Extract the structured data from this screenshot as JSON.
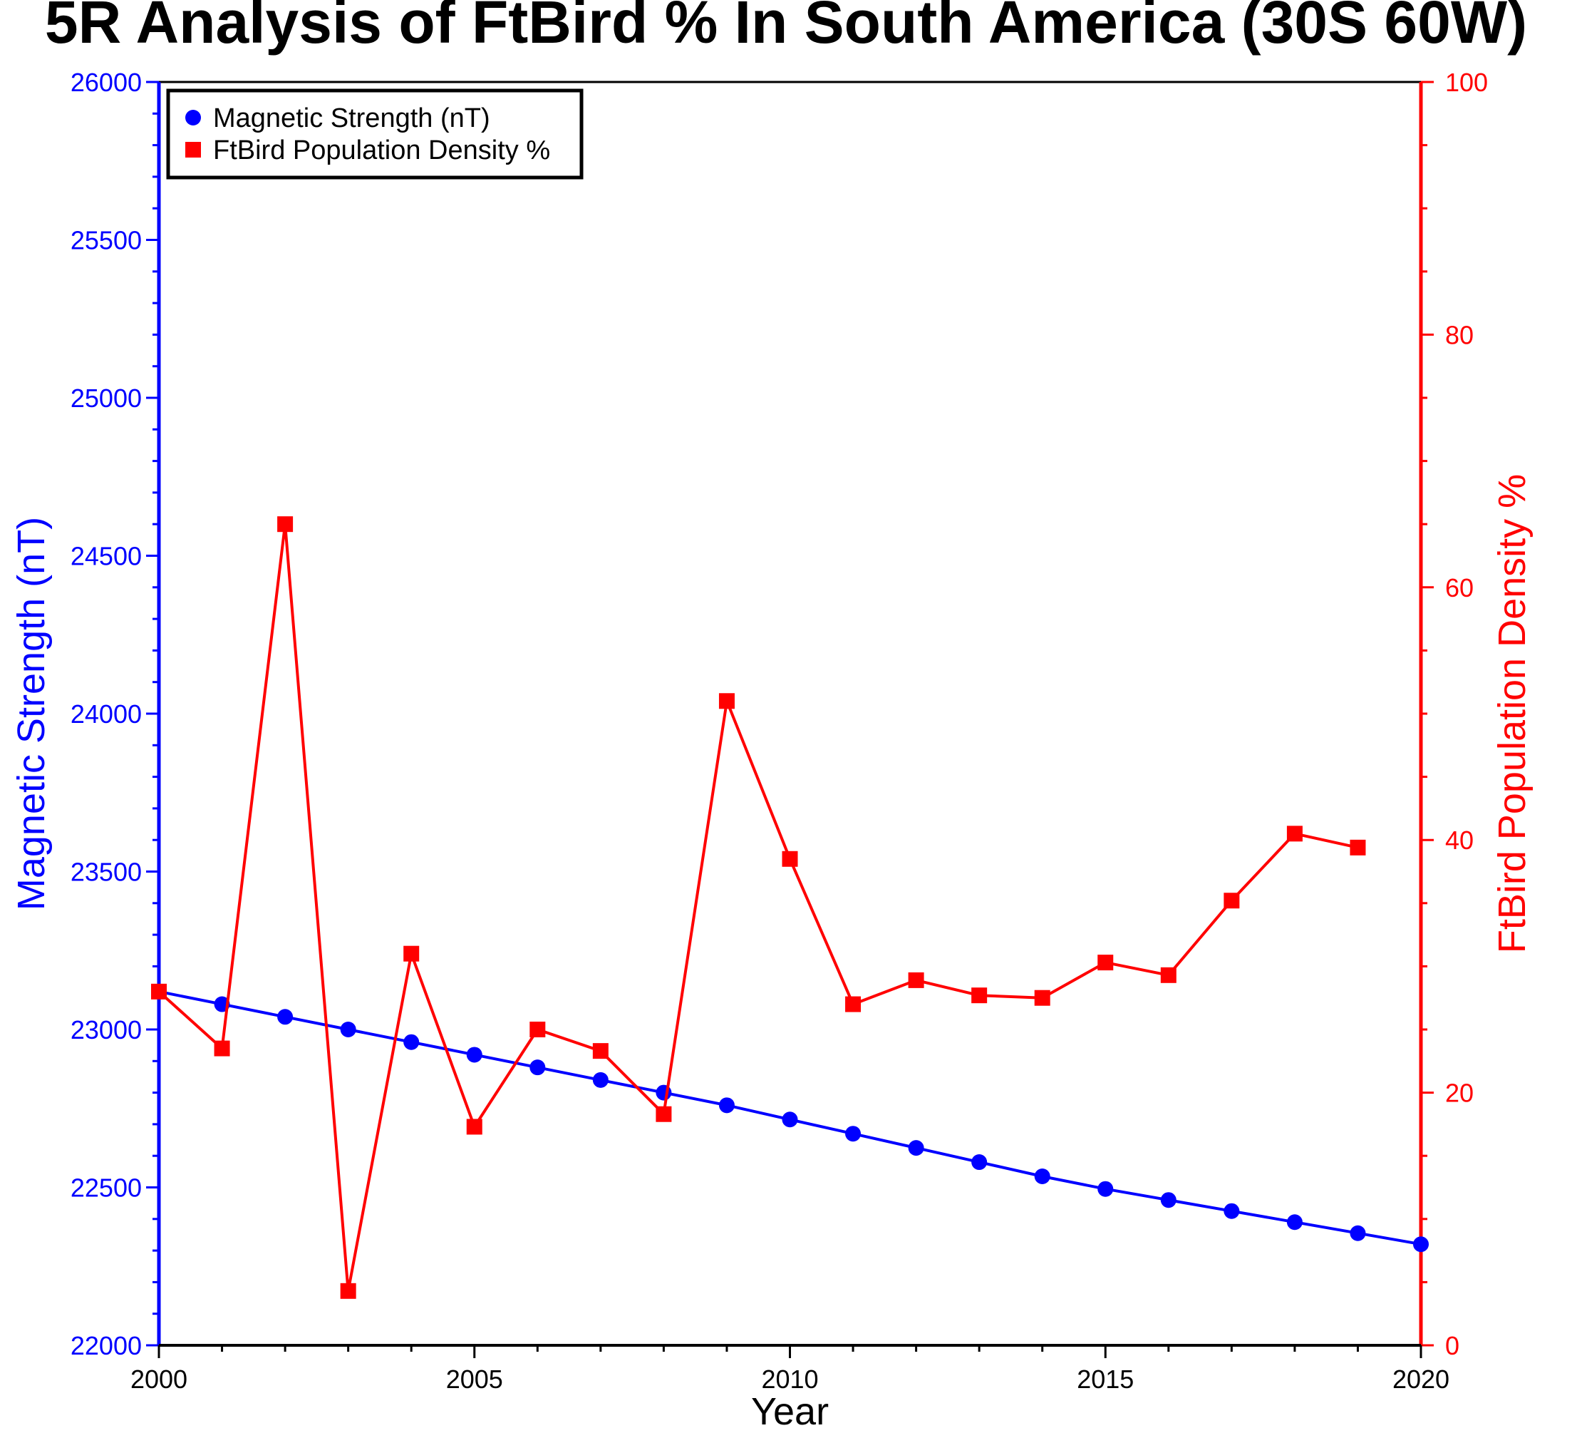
{
  "title": "5R Analysis of FtBird % In South America (30S 60W)",
  "colors": {
    "left_axis": "#0000ff",
    "right_axis": "#ff0000",
    "text": "#000000"
  },
  "chart_data": {
    "type": "line",
    "title": "5R Analysis of FtBird % In South America (30S 60W)",
    "xlabel": "Year",
    "ylabel_left": "Magnetic Strength (nT)",
    "ylabel_right": "FtBird Population Density %",
    "xlim": [
      2000,
      2020
    ],
    "ylim_left": [
      22000,
      26000
    ],
    "ylim_right": [
      0,
      100
    ],
    "x_ticks": [
      "2000",
      "2005",
      "2010",
      "2015",
      "2020"
    ],
    "y_ticks_left": [
      "22000",
      "22500",
      "23000",
      "23500",
      "24000",
      "24500",
      "25000",
      "25500",
      "26000"
    ],
    "y_ticks_right": [
      "0",
      "20",
      "40",
      "60",
      "80",
      "100"
    ],
    "legend_position": "top-left",
    "series": [
      {
        "name": "Magnetic Strength (nT)",
        "axis": "left",
        "marker": "circle",
        "color": "#0000ff",
        "x": [
          2000,
          2001,
          2002,
          2003,
          2004,
          2005,
          2006,
          2007,
          2008,
          2009,
          2010,
          2011,
          2012,
          2013,
          2014,
          2015,
          2016,
          2017,
          2018,
          2019,
          2020
        ],
        "y": [
          23120,
          23080,
          23040,
          23000,
          22960,
          22920,
          22880,
          22840,
          22800,
          22760,
          22715,
          22670,
          22625,
          22580,
          22535,
          22495,
          22460,
          22425,
          22390,
          22355,
          22320
        ]
      },
      {
        "name": "FtBird Population Density %",
        "axis": "right",
        "marker": "square",
        "color": "#ff0000",
        "x": [
          2000,
          2001,
          2002,
          2003,
          2004,
          2005,
          2006,
          2007,
          2008,
          2009,
          2010,
          2011,
          2012,
          2013,
          2014,
          2015,
          2016,
          2017,
          2018,
          2019
        ],
        "y": [
          28.0,
          23.5,
          65.0,
          4.3,
          31.0,
          17.3,
          25.0,
          23.3,
          18.3,
          51.0,
          38.5,
          27.0,
          28.9,
          27.7,
          27.5,
          30.3,
          29.3,
          35.2,
          40.5,
          39.4
        ]
      }
    ]
  }
}
